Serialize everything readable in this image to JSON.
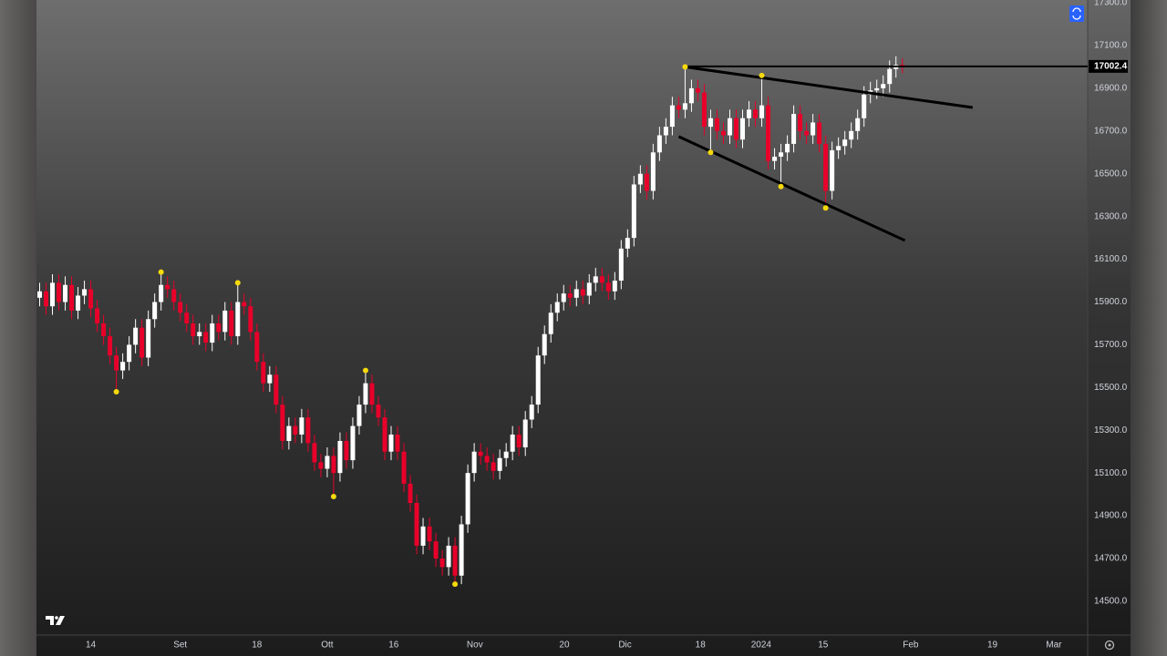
{
  "chart_data": {
    "type": "candlestick",
    "xlim": [
      -0.5,
      164
    ],
    "xticks": [
      {
        "value": 8,
        "label": "14"
      },
      {
        "value": 22,
        "label": "Set"
      },
      {
        "value": 34,
        "label": "18"
      },
      {
        "value": 45,
        "label": "Ott"
      },
      {
        "value": 55.4,
        "label": "16"
      },
      {
        "value": 68.1,
        "label": "Nov"
      },
      {
        "value": 82.1,
        "label": "20"
      },
      {
        "value": 91.6,
        "label": "Dic"
      },
      {
        "value": 103.4,
        "label": "18"
      },
      {
        "value": 112.9,
        "label": "2024"
      },
      {
        "value": 122.6,
        "label": "15"
      },
      {
        "value": 136.3,
        "label": "Feb"
      },
      {
        "value": 149.1,
        "label": "19"
      },
      {
        "value": 158.7,
        "label": "Mar"
      }
    ],
    "ylim": [
      14342,
      17313
    ],
    "yticks": [
      {
        "value": 14500,
        "label": "14500.0"
      },
      {
        "value": 14700,
        "label": "14700.0"
      },
      {
        "value": 14900,
        "label": "14900.0"
      },
      {
        "value": 15100,
        "label": "15100.0"
      },
      {
        "value": 15300,
        "label": "15300.0"
      },
      {
        "value": 15500,
        "label": "15500.0"
      },
      {
        "value": 15700,
        "label": "15700.0"
      },
      {
        "value": 15900,
        "label": "15900.0"
      },
      {
        "value": 16100,
        "label": "16100.0"
      },
      {
        "value": 16300,
        "label": "16300.0"
      },
      {
        "value": 16500,
        "label": "16500.0"
      },
      {
        "value": 16700,
        "label": "16700.0"
      },
      {
        "value": 16900,
        "label": "16900.0"
      },
      {
        "value": 17100,
        "label": "17100.0"
      },
      {
        "value": 17300,
        "label": "17300.0"
      }
    ],
    "up_color": "#ffffff",
    "down_color": "#e8002a",
    "pivot_color": "#f5d90a",
    "line_color": "#000000",
    "open": [
      15920,
      15950,
      15880,
      15990,
      15900,
      15980,
      15860,
      15930,
      15960,
      15870,
      15800,
      15740,
      15650,
      15580,
      15620,
      15700,
      15780,
      15640,
      15820,
      15900,
      15980,
      15960,
      15900,
      15850,
      15800,
      15740,
      15760,
      15710,
      15800,
      15760,
      15860,
      15740,
      15900,
      15880,
      15760,
      15620,
      15520,
      15560,
      15420,
      15250,
      15320,
      15280,
      15360,
      15240,
      15150,
      15120,
      15180,
      15100,
      15250,
      15160,
      15320,
      15420,
      15520,
      15420,
      15360,
      15200,
      15280,
      15200,
      15050,
      14960,
      14760,
      14850,
      14780,
      14700,
      14660,
      14760,
      14620,
      14860,
      15100,
      15200,
      15180,
      15150,
      15110,
      15170,
      15200,
      15280,
      15220,
      15350,
      15420,
      15650,
      15750,
      15850,
      15900,
      15940,
      15920,
      15960,
      15930,
      15990,
      16020,
      15990,
      15950,
      16000,
      16150,
      16200,
      16450,
      16500,
      16420,
      16600,
      16680,
      16720,
      16820,
      16800,
      16830,
      16900,
      16880,
      16720,
      16760,
      16700,
      16680,
      16760,
      16660,
      16760,
      16800,
      16760,
      16820,
      16560,
      16580,
      16600,
      16640,
      16780,
      16700,
      16680,
      16740,
      16640,
      16420,
      16610,
      16630,
      16660,
      16700,
      16760,
      16870,
      16890,
      16900,
      16920,
      16990,
      17010
    ],
    "high": [
      15990,
      15990,
      16030,
      16030,
      16020,
      16020,
      15970,
      16000,
      16000,
      15910,
      15840,
      15780,
      15690,
      15660,
      15740,
      15820,
      15820,
      15860,
      15940,
      16040,
      16020,
      16000,
      15940,
      15890,
      15840,
      15800,
      15800,
      15840,
      15840,
      15900,
      15900,
      15990,
      15940,
      15920,
      15800,
      15660,
      15600,
      15600,
      15460,
      15360,
      15360,
      15400,
      15400,
      15280,
      15190,
      15220,
      15220,
      15290,
      15290,
      15360,
      15460,
      15580,
      15560,
      15460,
      15400,
      15320,
      15320,
      15240,
      15090,
      15000,
      14890,
      14890,
      14820,
      14740,
      14800,
      14800,
      14900,
      15140,
      15240,
      15240,
      15220,
      15190,
      15210,
      15240,
      15320,
      15320,
      15390,
      15460,
      15690,
      15790,
      15890,
      15940,
      15980,
      15980,
      16000,
      16000,
      16030,
      16060,
      16060,
      16030,
      16040,
      16190,
      16240,
      16490,
      16540,
      16540,
      16640,
      16720,
      16760,
      16860,
      16860,
      17000,
      16940,
      16940,
      16920,
      16800,
      16800,
      16740,
      16800,
      16800,
      16800,
      16840,
      16840,
      16960,
      16860,
      16620,
      16640,
      16680,
      16820,
      16820,
      16740,
      16780,
      16780,
      16680,
      16650,
      16670,
      16700,
      16740,
      16800,
      16910,
      16930,
      16940,
      16960,
      17030,
      17050,
      17040
    ],
    "low": [
      15880,
      15840,
      15840,
      15860,
      15860,
      15820,
      15820,
      15890,
      15830,
      15760,
      15700,
      15610,
      15480,
      15540,
      15580,
      15660,
      15600,
      15600,
      15780,
      15860,
      15920,
      15860,
      15810,
      15760,
      15700,
      15700,
      15670,
      15670,
      15720,
      15720,
      15700,
      15700,
      15840,
      15720,
      15580,
      15480,
      15480,
      15380,
      15210,
      15210,
      15240,
      15240,
      15200,
      15110,
      15080,
      15080,
      14990,
      15060,
      15120,
      15120,
      15280,
      15380,
      15380,
      15320,
      15160,
      15160,
      15160,
      15010,
      14920,
      14720,
      14720,
      14740,
      14660,
      14620,
      14620,
      14580,
      14580,
      14820,
      15060,
      15140,
      15110,
      15070,
      15070,
      15130,
      15160,
      15180,
      15180,
      15310,
      15380,
      15610,
      15710,
      15810,
      15860,
      15880,
      15880,
      15890,
      15890,
      15950,
      15950,
      15910,
      15910,
      15960,
      16110,
      16160,
      16410,
      16380,
      16380,
      16560,
      16640,
      16680,
      16760,
      16760,
      16790,
      16840,
      16680,
      16600,
      16660,
      16640,
      16640,
      16620,
      16620,
      16720,
      16720,
      16720,
      16520,
      16520,
      16440,
      16560,
      16600,
      16660,
      16640,
      16640,
      16600,
      16340,
      16380,
      16570,
      16590,
      16620,
      16660,
      16720,
      16830,
      16850,
      16860,
      16880,
      16950,
      16970
    ],
    "close": [
      15950,
      15880,
      15990,
      15900,
      15980,
      15860,
      15930,
      15960,
      15870,
      15800,
      15740,
      15650,
      15580,
      15620,
      15700,
      15780,
      15640,
      15820,
      15900,
      15980,
      15960,
      15900,
      15850,
      15800,
      15740,
      15760,
      15710,
      15800,
      15760,
      15860,
      15740,
      15900,
      15880,
      15760,
      15620,
      15520,
      15560,
      15420,
      15250,
      15320,
      15280,
      15360,
      15240,
      15150,
      15120,
      15180,
      15100,
      15250,
      15160,
      15320,
      15420,
      15520,
      15420,
      15360,
      15200,
      15280,
      15200,
      15050,
      14960,
      14760,
      14850,
      14780,
      14700,
      14660,
      14760,
      14620,
      14860,
      15100,
      15200,
      15180,
      15150,
      15110,
      15170,
      15200,
      15280,
      15220,
      15350,
      15420,
      15650,
      15750,
      15850,
      15900,
      15940,
      15920,
      15960,
      15930,
      15990,
      16020,
      15990,
      15950,
      16000,
      16150,
      16200,
      16450,
      16500,
      16420,
      16600,
      16680,
      16720,
      16820,
      16800,
      16830,
      16900,
      16880,
      16720,
      16760,
      16700,
      16680,
      16760,
      16660,
      16760,
      16800,
      16760,
      16820,
      16560,
      16580,
      16600,
      16640,
      16780,
      16700,
      16680,
      16740,
      16640,
      16420,
      16610,
      16630,
      16660,
      16700,
      16760,
      16870,
      16890,
      16900,
      16920,
      16990,
      17010,
      17002.4
    ],
    "pivots_high": [
      19,
      31,
      51,
      101,
      113
    ],
    "pivots_low": [
      12,
      46,
      65,
      105,
      116,
      123
    ],
    "trendlines": [
      {
        "x": [
          101,
          146
        ],
        "y": [
          17000,
          16810
        ]
      },
      {
        "x": [
          100,
          135.4
        ],
        "y": [
          16674,
          16188
        ]
      }
    ]
  }
}
